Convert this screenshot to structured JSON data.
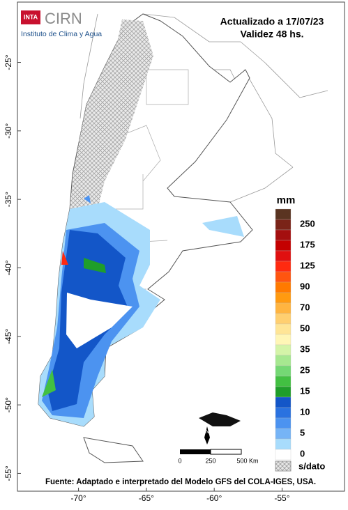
{
  "logo": {
    "badge": "INTA",
    "name": "CIRN",
    "subtitle": "Instituto de Clima y Agua"
  },
  "header": {
    "updated": "Actualizado a 17/07/23",
    "validity": "Validez 48 hs."
  },
  "map": {
    "lat_range": [
      -56.3,
      -20.6
    ],
    "lon_range": [
      -74.5,
      -50.4
    ],
    "lat_ticks": [
      {
        "value": -25,
        "label": "-25°"
      },
      {
        "value": -30,
        "label": "-30°"
      },
      {
        "value": -35,
        "label": "-35°"
      },
      {
        "value": -40,
        "label": "-40°"
      },
      {
        "value": -45,
        "label": "-45°"
      },
      {
        "value": -50,
        "label": "-50°"
      },
      {
        "value": -55,
        "label": "-55°"
      }
    ],
    "lon_ticks": [
      {
        "value": -70,
        "label": "-70°"
      },
      {
        "value": -65,
        "label": "-65°"
      },
      {
        "value": -60,
        "label": "-60°"
      },
      {
        "value": -55,
        "label": "-55°"
      }
    ]
  },
  "legend": {
    "title": "mm",
    "labels": [
      "250",
      "175",
      "125",
      "90",
      "70",
      "50",
      "35",
      "25",
      "15",
      "10",
      "5",
      "0"
    ],
    "colors": [
      "#5a3421",
      "#7a2418",
      "#a40f0f",
      "#c40000",
      "#e01010",
      "#ff2a10",
      "#ff5510",
      "#ff7a00",
      "#ff9a10",
      "#ffb440",
      "#ffcf70",
      "#ffe596",
      "#fff6b6",
      "#d4f4a8",
      "#a6e890",
      "#74d874",
      "#42c042",
      "#1f9e2a",
      "#1356c8",
      "#2a72e0",
      "#4c93f0",
      "#76b4f6",
      "#a8dcfc",
      "#ffffff"
    ],
    "nodata": "s/dato"
  },
  "scale": {
    "labels": [
      "0",
      "250",
      "500 Km"
    ],
    "north": "N"
  },
  "footer": "Fuente: Adaptado e interpretado del Modelo GFS del COLA-IGES, USA."
}
